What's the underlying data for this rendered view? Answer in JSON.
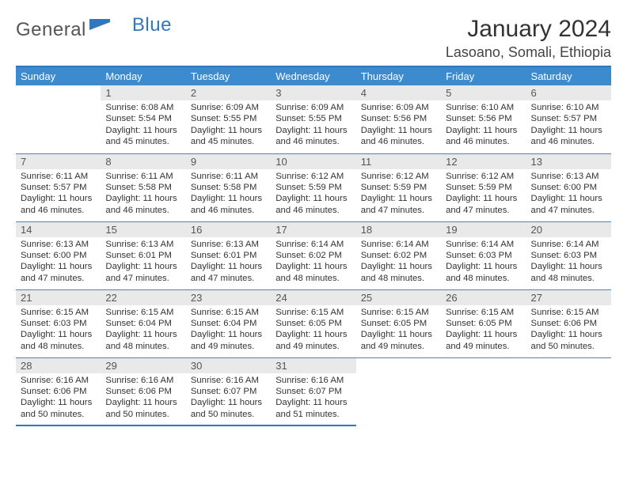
{
  "brand": {
    "name1": "General",
    "name2": "Blue"
  },
  "header": {
    "month": "January 2024",
    "location": "Lasoano, Somali, Ethiopia"
  },
  "weekdays": [
    "Sunday",
    "Monday",
    "Tuesday",
    "Wednesday",
    "Thursday",
    "Friday",
    "Saturday"
  ],
  "colors": {
    "headerBlue": "#3d8bcf",
    "borderBlue": "#2f78bf",
    "dayBg": "#e9e9e9"
  },
  "cells": {
    "1": {
      "n": "1",
      "sr": "Sunrise: 6:08 AM",
      "ss": "Sunset: 5:54 PM",
      "d1": "Daylight: 11 hours",
      "d2": "and 45 minutes."
    },
    "2": {
      "n": "2",
      "sr": "Sunrise: 6:09 AM",
      "ss": "Sunset: 5:55 PM",
      "d1": "Daylight: 11 hours",
      "d2": "and 45 minutes."
    },
    "3": {
      "n": "3",
      "sr": "Sunrise: 6:09 AM",
      "ss": "Sunset: 5:55 PM",
      "d1": "Daylight: 11 hours",
      "d2": "and 46 minutes."
    },
    "4": {
      "n": "4",
      "sr": "Sunrise: 6:09 AM",
      "ss": "Sunset: 5:56 PM",
      "d1": "Daylight: 11 hours",
      "d2": "and 46 minutes."
    },
    "5": {
      "n": "5",
      "sr": "Sunrise: 6:10 AM",
      "ss": "Sunset: 5:56 PM",
      "d1": "Daylight: 11 hours",
      "d2": "and 46 minutes."
    },
    "6": {
      "n": "6",
      "sr": "Sunrise: 6:10 AM",
      "ss": "Sunset: 5:57 PM",
      "d1": "Daylight: 11 hours",
      "d2": "and 46 minutes."
    },
    "7": {
      "n": "7",
      "sr": "Sunrise: 6:11 AM",
      "ss": "Sunset: 5:57 PM",
      "d1": "Daylight: 11 hours",
      "d2": "and 46 minutes."
    },
    "8": {
      "n": "8",
      "sr": "Sunrise: 6:11 AM",
      "ss": "Sunset: 5:58 PM",
      "d1": "Daylight: 11 hours",
      "d2": "and 46 minutes."
    },
    "9": {
      "n": "9",
      "sr": "Sunrise: 6:11 AM",
      "ss": "Sunset: 5:58 PM",
      "d1": "Daylight: 11 hours",
      "d2": "and 46 minutes."
    },
    "10": {
      "n": "10",
      "sr": "Sunrise: 6:12 AM",
      "ss": "Sunset: 5:59 PM",
      "d1": "Daylight: 11 hours",
      "d2": "and 46 minutes."
    },
    "11": {
      "n": "11",
      "sr": "Sunrise: 6:12 AM",
      "ss": "Sunset: 5:59 PM",
      "d1": "Daylight: 11 hours",
      "d2": "and 47 minutes."
    },
    "12": {
      "n": "12",
      "sr": "Sunrise: 6:12 AM",
      "ss": "Sunset: 5:59 PM",
      "d1": "Daylight: 11 hours",
      "d2": "and 47 minutes."
    },
    "13": {
      "n": "13",
      "sr": "Sunrise: 6:13 AM",
      "ss": "Sunset: 6:00 PM",
      "d1": "Daylight: 11 hours",
      "d2": "and 47 minutes."
    },
    "14": {
      "n": "14",
      "sr": "Sunrise: 6:13 AM",
      "ss": "Sunset: 6:00 PM",
      "d1": "Daylight: 11 hours",
      "d2": "and 47 minutes."
    },
    "15": {
      "n": "15",
      "sr": "Sunrise: 6:13 AM",
      "ss": "Sunset: 6:01 PM",
      "d1": "Daylight: 11 hours",
      "d2": "and 47 minutes."
    },
    "16": {
      "n": "16",
      "sr": "Sunrise: 6:13 AM",
      "ss": "Sunset: 6:01 PM",
      "d1": "Daylight: 11 hours",
      "d2": "and 47 minutes."
    },
    "17": {
      "n": "17",
      "sr": "Sunrise: 6:14 AM",
      "ss": "Sunset: 6:02 PM",
      "d1": "Daylight: 11 hours",
      "d2": "and 48 minutes."
    },
    "18": {
      "n": "18",
      "sr": "Sunrise: 6:14 AM",
      "ss": "Sunset: 6:02 PM",
      "d1": "Daylight: 11 hours",
      "d2": "and 48 minutes."
    },
    "19": {
      "n": "19",
      "sr": "Sunrise: 6:14 AM",
      "ss": "Sunset: 6:03 PM",
      "d1": "Daylight: 11 hours",
      "d2": "and 48 minutes."
    },
    "20": {
      "n": "20",
      "sr": "Sunrise: 6:14 AM",
      "ss": "Sunset: 6:03 PM",
      "d1": "Daylight: 11 hours",
      "d2": "and 48 minutes."
    },
    "21": {
      "n": "21",
      "sr": "Sunrise: 6:15 AM",
      "ss": "Sunset: 6:03 PM",
      "d1": "Daylight: 11 hours",
      "d2": "and 48 minutes."
    },
    "22": {
      "n": "22",
      "sr": "Sunrise: 6:15 AM",
      "ss": "Sunset: 6:04 PM",
      "d1": "Daylight: 11 hours",
      "d2": "and 48 minutes."
    },
    "23": {
      "n": "23",
      "sr": "Sunrise: 6:15 AM",
      "ss": "Sunset: 6:04 PM",
      "d1": "Daylight: 11 hours",
      "d2": "and 49 minutes."
    },
    "24": {
      "n": "24",
      "sr": "Sunrise: 6:15 AM",
      "ss": "Sunset: 6:05 PM",
      "d1": "Daylight: 11 hours",
      "d2": "and 49 minutes."
    },
    "25": {
      "n": "25",
      "sr": "Sunrise: 6:15 AM",
      "ss": "Sunset: 6:05 PM",
      "d1": "Daylight: 11 hours",
      "d2": "and 49 minutes."
    },
    "26": {
      "n": "26",
      "sr": "Sunrise: 6:15 AM",
      "ss": "Sunset: 6:05 PM",
      "d1": "Daylight: 11 hours",
      "d2": "and 49 minutes."
    },
    "27": {
      "n": "27",
      "sr": "Sunrise: 6:15 AM",
      "ss": "Sunset: 6:06 PM",
      "d1": "Daylight: 11 hours",
      "d2": "and 50 minutes."
    },
    "28": {
      "n": "28",
      "sr": "Sunrise: 6:16 AM",
      "ss": "Sunset: 6:06 PM",
      "d1": "Daylight: 11 hours",
      "d2": "and 50 minutes."
    },
    "29": {
      "n": "29",
      "sr": "Sunrise: 6:16 AM",
      "ss": "Sunset: 6:06 PM",
      "d1": "Daylight: 11 hours",
      "d2": "and 50 minutes."
    },
    "30": {
      "n": "30",
      "sr": "Sunrise: 6:16 AM",
      "ss": "Sunset: 6:07 PM",
      "d1": "Daylight: 11 hours",
      "d2": "and 50 minutes."
    },
    "31": {
      "n": "31",
      "sr": "Sunrise: 6:16 AM",
      "ss": "Sunset: 6:07 PM",
      "d1": "Daylight: 11 hours",
      "d2": "and 51 minutes."
    }
  }
}
